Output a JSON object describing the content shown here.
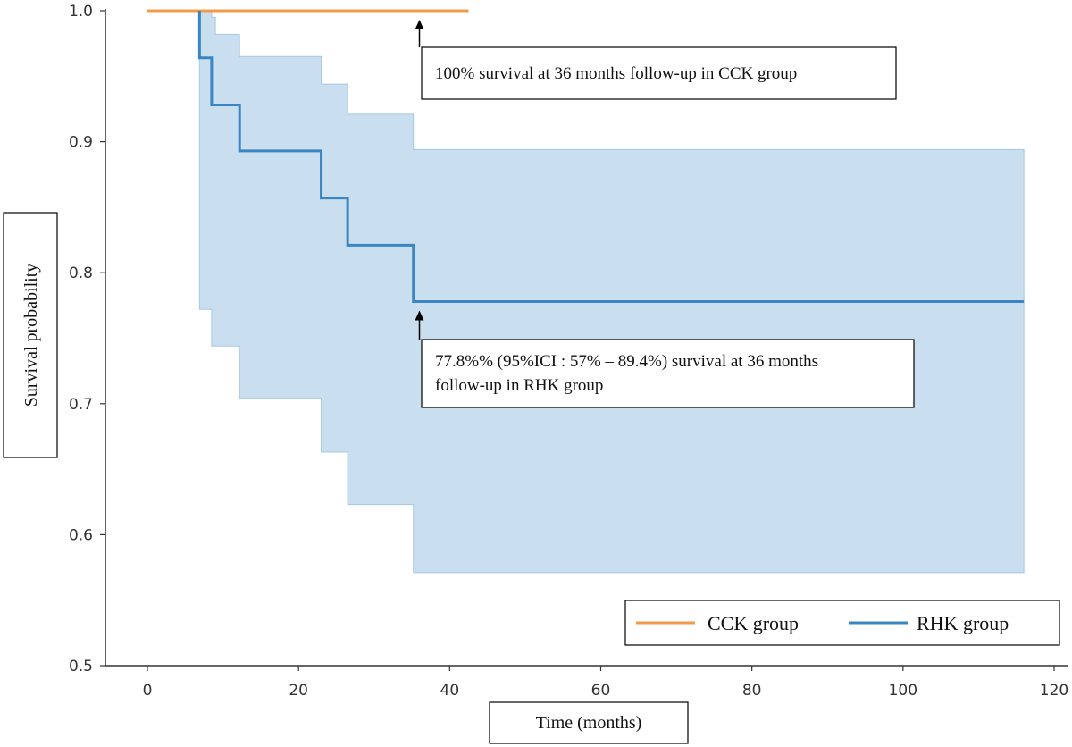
{
  "chart_data": {
    "type": "line",
    "xlabel": "Time (months)",
    "ylabel": "Survival probability",
    "xlim": [
      -5,
      121
    ],
    "ylim": [
      0.5,
      1.0
    ],
    "x_ticks": [
      0,
      20,
      40,
      60,
      80,
      100,
      120
    ],
    "y_ticks": [
      0.5,
      0.6,
      0.7,
      0.8,
      0.9,
      1.0
    ],
    "grid": false,
    "legend_position": "bottom-right",
    "series": [
      {
        "name": "CCK group",
        "color": "#f29a4a",
        "steps": [
          [
            0,
            1.0
          ],
          [
            42.5,
            1.0
          ]
        ]
      },
      {
        "name": "RHK group",
        "color": "#3a85c2",
        "ci_color": "#c6dcee",
        "steps": [
          [
            6.9,
            1.0
          ],
          [
            6.9,
            0.964
          ],
          [
            8.5,
            0.964
          ],
          [
            8.5,
            0.928
          ],
          [
            12.2,
            0.928
          ],
          [
            12.2,
            0.893
          ],
          [
            23.0,
            0.893
          ],
          [
            23.0,
            0.857
          ],
          [
            26.5,
            0.857
          ],
          [
            26.5,
            0.821
          ],
          [
            35.2,
            0.821
          ],
          [
            35.2,
            0.778
          ],
          [
            116.0,
            0.778
          ]
        ],
        "ci_upper": [
          [
            6.9,
            1.0
          ],
          [
            8.5,
            1.0
          ],
          [
            8.5,
            0.995
          ],
          [
            9.0,
            0.995
          ],
          [
            9.0,
            0.982
          ],
          [
            12.2,
            0.982
          ],
          [
            12.2,
            0.965
          ],
          [
            23.0,
            0.965
          ],
          [
            23.0,
            0.944
          ],
          [
            26.5,
            0.944
          ],
          [
            26.5,
            0.921
          ],
          [
            35.2,
            0.921
          ],
          [
            35.2,
            0.894
          ],
          [
            116.0,
            0.894
          ]
        ],
        "ci_lower": [
          [
            6.9,
            0.772
          ],
          [
            8.5,
            0.772
          ],
          [
            8.5,
            0.744
          ],
          [
            12.2,
            0.744
          ],
          [
            12.2,
            0.704
          ],
          [
            23.0,
            0.704
          ],
          [
            23.0,
            0.663
          ],
          [
            26.5,
            0.663
          ],
          [
            26.5,
            0.623
          ],
          [
            35.2,
            0.623
          ],
          [
            35.2,
            0.571
          ],
          [
            116.0,
            0.571
          ]
        ]
      }
    ],
    "annotations": [
      {
        "lines": [
          "100% survival at 36 months follow-up in CCK group"
        ],
        "target": [
          36,
          1.0
        ]
      },
      {
        "lines": [
          "77.8%% (95%ICI : 57% – 89.4%) survival at 36 months",
          "follow-up in RHK group"
        ],
        "target": [
          36,
          0.778
        ]
      }
    ]
  }
}
